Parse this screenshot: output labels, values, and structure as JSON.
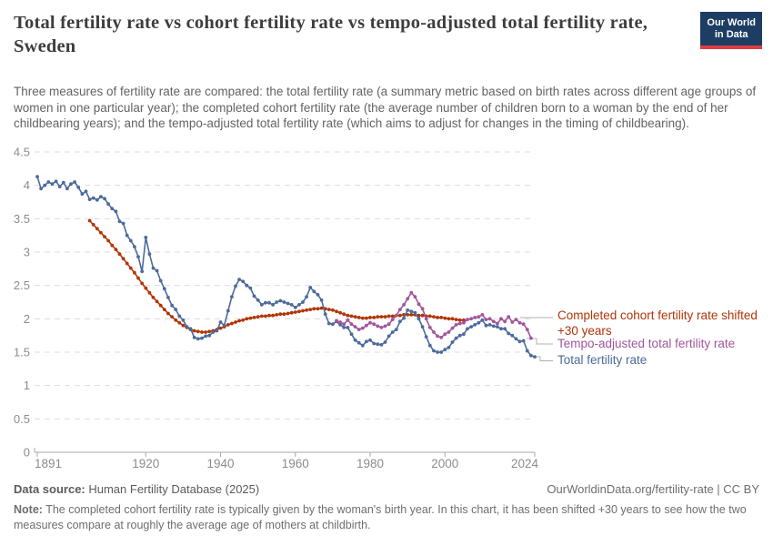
{
  "header": {
    "title": "Total fertility rate vs cohort fertility rate vs tempo-adjusted total fertility rate, Sweden",
    "subtitle": "Three measures of fertility rate are compared: the total fertility rate (a summary metric based on birth rates across different age groups of women in one particular year); the completed cohort fertility rate (the average number of children born to a woman by the end of her childbearing years); and the tempo-adjusted total fertility rate (which aims to adjust for changes in the timing of childbearing).",
    "logo": {
      "line1": "Our World",
      "line2": "in Data",
      "bg_color": "#1d3d63",
      "bar_color": "#dc3d43"
    }
  },
  "footer": {
    "source_label": "Data source:",
    "source_text": " Human Fertility Database (2025)",
    "attribution": "OurWorldinData.org/fertility-rate | CC BY",
    "note_label": "Note:",
    "note_text": " The completed cohort fertility rate is typically given by the woman's birth year. In this chart, it has been shifted +30 years to see how the two measures compare at roughly the average age of mothers at childbirth."
  },
  "chart_data": {
    "type": "line",
    "title": "Total fertility rate vs cohort fertility rate vs tempo-adjusted total fertility rate, Sweden",
    "xlabel": "",
    "ylabel": "",
    "xlim": [
      1891,
      2024
    ],
    "ylim": [
      0,
      4.5
    ],
    "x_ticks": [
      1891,
      1920,
      1940,
      1960,
      1980,
      2000,
      2024
    ],
    "y_ticks": [
      0,
      0.5,
      1,
      1.5,
      2,
      2.5,
      3,
      3.5,
      4,
      4.5
    ],
    "grid": "horizontal dashed",
    "legend_position": "right of line ends",
    "colors": {
      "grid": "#dcdcdc",
      "axis": "#a8a8a8",
      "tick_label": "#8c8c8c",
      "connector": "#b0b0b0"
    },
    "series": [
      {
        "name": "Completed cohort fertility rate shifted +30 years",
        "color": "#b13507",
        "points": [
          [
            1905,
            3.47
          ],
          [
            1906,
            3.41
          ],
          [
            1907,
            3.35
          ],
          [
            1908,
            3.29
          ],
          [
            1909,
            3.23
          ],
          [
            1910,
            3.17
          ],
          [
            1911,
            3.1
          ],
          [
            1912,
            3.04
          ],
          [
            1913,
            2.97
          ],
          [
            1914,
            2.9
          ],
          [
            1915,
            2.83
          ],
          [
            1916,
            2.76
          ],
          [
            1917,
            2.69
          ],
          [
            1918,
            2.61
          ],
          [
            1919,
            2.53
          ],
          [
            1920,
            2.46
          ],
          [
            1921,
            2.39
          ],
          [
            1922,
            2.32
          ],
          [
            1923,
            2.26
          ],
          [
            1924,
            2.2
          ],
          [
            1925,
            2.14
          ],
          [
            1926,
            2.08
          ],
          [
            1927,
            2.03
          ],
          [
            1928,
            1.98
          ],
          [
            1929,
            1.94
          ],
          [
            1930,
            1.9
          ],
          [
            1931,
            1.87
          ],
          [
            1932,
            1.84
          ],
          [
            1933,
            1.82
          ],
          [
            1934,
            1.81
          ],
          [
            1935,
            1.8
          ],
          [
            1936,
            1.8
          ],
          [
            1937,
            1.81
          ],
          [
            1938,
            1.82
          ],
          [
            1939,
            1.84
          ],
          [
            1940,
            1.86
          ],
          [
            1941,
            1.88
          ],
          [
            1942,
            1.91
          ],
          [
            1943,
            1.93
          ],
          [
            1944,
            1.95
          ],
          [
            1945,
            1.97
          ],
          [
            1946,
            1.98
          ],
          [
            1947,
            2.0
          ],
          [
            1948,
            2.01
          ],
          [
            1949,
            2.02
          ],
          [
            1950,
            2.03
          ],
          [
            1951,
            2.04
          ],
          [
            1952,
            2.04
          ],
          [
            1953,
            2.05
          ],
          [
            1954,
            2.05
          ],
          [
            1955,
            2.06
          ],
          [
            1956,
            2.07
          ],
          [
            1957,
            2.07
          ],
          [
            1958,
            2.08
          ],
          [
            1959,
            2.09
          ],
          [
            1960,
            2.1
          ],
          [
            1961,
            2.11
          ],
          [
            1962,
            2.12
          ],
          [
            1963,
            2.13
          ],
          [
            1964,
            2.14
          ],
          [
            1965,
            2.15
          ],
          [
            1966,
            2.15
          ],
          [
            1967,
            2.16
          ],
          [
            1968,
            2.15
          ],
          [
            1969,
            2.14
          ],
          [
            1970,
            2.13
          ],
          [
            1971,
            2.11
          ],
          [
            1972,
            2.09
          ],
          [
            1973,
            2.07
          ],
          [
            1974,
            2.05
          ],
          [
            1975,
            2.04
          ],
          [
            1976,
            2.03
          ],
          [
            1977,
            2.02
          ],
          [
            1978,
            2.01
          ],
          [
            1979,
            2.01
          ],
          [
            1980,
            2.02
          ],
          [
            1981,
            2.02
          ],
          [
            1982,
            2.03
          ],
          [
            1983,
            2.03
          ],
          [
            1984,
            2.03
          ],
          [
            1985,
            2.04
          ],
          [
            1986,
            2.04
          ],
          [
            1987,
            2.05
          ],
          [
            1988,
            2.05
          ],
          [
            1989,
            2.06
          ],
          [
            1990,
            2.06
          ],
          [
            1991,
            2.06
          ],
          [
            1992,
            2.06
          ],
          [
            1993,
            2.05
          ],
          [
            1994,
            2.05
          ],
          [
            1995,
            2.04
          ],
          [
            1996,
            2.04
          ],
          [
            1997,
            2.03
          ],
          [
            1998,
            2.02
          ],
          [
            1999,
            2.02
          ],
          [
            2000,
            2.01
          ],
          [
            2001,
            2.0
          ],
          [
            2002,
            2.0
          ],
          [
            2003,
            1.99
          ],
          [
            2004,
            1.98
          ],
          [
            2005,
            1.98
          ]
        ]
      },
      {
        "name": "Tempo-adjusted total fertility rate",
        "color": "#a2559c",
        "points": [
          [
            1971,
            1.97
          ],
          [
            1972,
            1.95
          ],
          [
            1973,
            1.92
          ],
          [
            1974,
            1.98
          ],
          [
            1975,
            1.92
          ],
          [
            1976,
            1.88
          ],
          [
            1977,
            1.84
          ],
          [
            1978,
            1.86
          ],
          [
            1979,
            1.9
          ],
          [
            1980,
            1.94
          ],
          [
            1981,
            1.92
          ],
          [
            1982,
            1.89
          ],
          [
            1983,
            1.87
          ],
          [
            1984,
            1.89
          ],
          [
            1985,
            1.92
          ],
          [
            1986,
            1.99
          ],
          [
            1987,
            2.05
          ],
          [
            1988,
            2.14
          ],
          [
            1989,
            2.21
          ],
          [
            1990,
            2.3
          ],
          [
            1991,
            2.39
          ],
          [
            1992,
            2.33
          ],
          [
            1993,
            2.22
          ],
          [
            1994,
            2.15
          ],
          [
            1995,
            2.0
          ],
          [
            1996,
            1.87
          ],
          [
            1997,
            1.8
          ],
          [
            1998,
            1.74
          ],
          [
            1999,
            1.72
          ],
          [
            2000,
            1.77
          ],
          [
            2001,
            1.8
          ],
          [
            2002,
            1.86
          ],
          [
            2003,
            1.91
          ],
          [
            2004,
            1.93
          ],
          [
            2005,
            1.94
          ],
          [
            2006,
            1.99
          ],
          [
            2007,
            2.0
          ],
          [
            2008,
            2.02
          ],
          [
            2009,
            2.03
          ],
          [
            2010,
            2.06
          ],
          [
            2011,
            1.99
          ],
          [
            2012,
            2.0
          ],
          [
            2013,
            1.96
          ],
          [
            2014,
            1.93
          ],
          [
            2015,
            2.0
          ],
          [
            2016,
            1.96
          ],
          [
            2017,
            2.03
          ],
          [
            2018,
            1.95
          ],
          [
            2019,
            1.99
          ],
          [
            2020,
            1.94
          ],
          [
            2021,
            1.92
          ],
          [
            2022,
            1.84
          ],
          [
            2023,
            1.71
          ]
        ]
      },
      {
        "name": "Total fertility rate",
        "color": "#4c6a9c",
        "points": [
          [
            1891,
            4.13
          ],
          [
            1892,
            3.95
          ],
          [
            1893,
            4.0
          ],
          [
            1894,
            4.05
          ],
          [
            1895,
            4.02
          ],
          [
            1896,
            4.06
          ],
          [
            1897,
            3.98
          ],
          [
            1898,
            4.04
          ],
          [
            1899,
            3.95
          ],
          [
            1900,
            4.02
          ],
          [
            1901,
            4.05
          ],
          [
            1902,
            3.97
          ],
          [
            1903,
            3.87
          ],
          [
            1904,
            3.91
          ],
          [
            1905,
            3.79
          ],
          [
            1906,
            3.81
          ],
          [
            1907,
            3.78
          ],
          [
            1908,
            3.83
          ],
          [
            1909,
            3.8
          ],
          [
            1910,
            3.72
          ],
          [
            1911,
            3.65
          ],
          [
            1912,
            3.61
          ],
          [
            1913,
            3.46
          ],
          [
            1914,
            3.43
          ],
          [
            1915,
            3.25
          ],
          [
            1916,
            3.17
          ],
          [
            1917,
            3.08
          ],
          [
            1918,
            2.93
          ],
          [
            1919,
            2.71
          ],
          [
            1920,
            3.22
          ],
          [
            1921,
            2.97
          ],
          [
            1922,
            2.76
          ],
          [
            1923,
            2.72
          ],
          [
            1924,
            2.57
          ],
          [
            1925,
            2.45
          ],
          [
            1926,
            2.32
          ],
          [
            1927,
            2.2
          ],
          [
            1928,
            2.14
          ],
          [
            1929,
            2.04
          ],
          [
            1930,
            1.98
          ],
          [
            1931,
            1.88
          ],
          [
            1932,
            1.85
          ],
          [
            1933,
            1.72
          ],
          [
            1934,
            1.7
          ],
          [
            1935,
            1.71
          ],
          [
            1936,
            1.74
          ],
          [
            1937,
            1.75
          ],
          [
            1938,
            1.8
          ],
          [
            1939,
            1.82
          ],
          [
            1940,
            1.95
          ],
          [
            1941,
            1.9
          ],
          [
            1942,
            2.12
          ],
          [
            1943,
            2.33
          ],
          [
            1944,
            2.49
          ],
          [
            1945,
            2.59
          ],
          [
            1946,
            2.56
          ],
          [
            1947,
            2.5
          ],
          [
            1948,
            2.46
          ],
          [
            1949,
            2.34
          ],
          [
            1950,
            2.28
          ],
          [
            1951,
            2.21
          ],
          [
            1952,
            2.24
          ],
          [
            1953,
            2.24
          ],
          [
            1954,
            2.21
          ],
          [
            1955,
            2.25
          ],
          [
            1956,
            2.27
          ],
          [
            1957,
            2.25
          ],
          [
            1958,
            2.23
          ],
          [
            1959,
            2.21
          ],
          [
            1960,
            2.17
          ],
          [
            1961,
            2.21
          ],
          [
            1962,
            2.25
          ],
          [
            1963,
            2.33
          ],
          [
            1964,
            2.47
          ],
          [
            1965,
            2.41
          ],
          [
            1966,
            2.36
          ],
          [
            1967,
            2.28
          ],
          [
            1968,
            2.07
          ],
          [
            1969,
            1.93
          ],
          [
            1970,
            1.92
          ],
          [
            1971,
            1.96
          ],
          [
            1972,
            1.91
          ],
          [
            1973,
            1.87
          ],
          [
            1974,
            1.87
          ],
          [
            1975,
            1.77
          ],
          [
            1976,
            1.68
          ],
          [
            1977,
            1.64
          ],
          [
            1978,
            1.6
          ],
          [
            1979,
            1.66
          ],
          [
            1980,
            1.68
          ],
          [
            1981,
            1.63
          ],
          [
            1982,
            1.62
          ],
          [
            1983,
            1.61
          ],
          [
            1984,
            1.65
          ],
          [
            1985,
            1.74
          ],
          [
            1986,
            1.8
          ],
          [
            1987,
            1.84
          ],
          [
            1988,
            1.96
          ],
          [
            1989,
            2.01
          ],
          [
            1990,
            2.13
          ],
          [
            1991,
            2.11
          ],
          [
            1992,
            2.09
          ],
          [
            1993,
            2.0
          ],
          [
            1994,
            1.88
          ],
          [
            1995,
            1.73
          ],
          [
            1996,
            1.6
          ],
          [
            1997,
            1.52
          ],
          [
            1998,
            1.5
          ],
          [
            1999,
            1.5
          ],
          [
            2000,
            1.54
          ],
          [
            2001,
            1.57
          ],
          [
            2002,
            1.65
          ],
          [
            2003,
            1.71
          ],
          [
            2004,
            1.75
          ],
          [
            2005,
            1.77
          ],
          [
            2006,
            1.85
          ],
          [
            2007,
            1.88
          ],
          [
            2008,
            1.91
          ],
          [
            2009,
            1.94
          ],
          [
            2010,
            1.98
          ],
          [
            2011,
            1.9
          ],
          [
            2012,
            1.91
          ],
          [
            2013,
            1.89
          ],
          [
            2014,
            1.88
          ],
          [
            2015,
            1.85
          ],
          [
            2016,
            1.85
          ],
          [
            2017,
            1.78
          ],
          [
            2018,
            1.75
          ],
          [
            2019,
            1.7
          ],
          [
            2020,
            1.66
          ],
          [
            2021,
            1.67
          ],
          [
            2022,
            1.52
          ],
          [
            2023,
            1.45
          ],
          [
            2024,
            1.43
          ]
        ]
      }
    ]
  }
}
